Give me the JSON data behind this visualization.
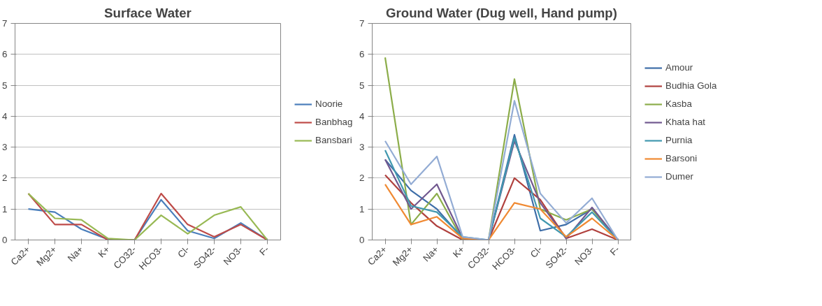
{
  "chart_data": [
    {
      "type": "line",
      "title": "Surface Water",
      "categories": [
        "Ca2+",
        "Mg2+",
        "Na+",
        "K+",
        "CO32-",
        "HCO3-",
        "Cl-",
        "SO42-",
        "NO3-",
        "F-"
      ],
      "ylim": [
        0,
        7
      ],
      "yticks": [
        0,
        1,
        2,
        3,
        4,
        5,
        6,
        7
      ],
      "grid": "y",
      "legend": "right",
      "marker": "none",
      "line_style": "solid",
      "series": [
        {
          "name": "Noorie",
          "color": "#4a7ebb",
          "values": [
            1.0,
            0.9,
            0.35,
            0.02,
            0,
            1.3,
            0.3,
            0.05,
            0.55,
            0
          ]
        },
        {
          "name": "Banbhag",
          "color": "#be4b48",
          "values": [
            1.5,
            0.5,
            0.5,
            0,
            0,
            1.5,
            0.5,
            0.1,
            0.5,
            0
          ]
        },
        {
          "name": "Bansbari",
          "color": "#98b954",
          "values": [
            1.5,
            0.7,
            0.65,
            0.05,
            0,
            0.8,
            0.2,
            0.8,
            1.07,
            0
          ]
        }
      ]
    },
    {
      "type": "line",
      "title": "Ground Water (Dug well, Hand pump)",
      "categories": [
        "Ca2+",
        "Mg2+",
        "Na+",
        "K+",
        "CO32-",
        "HCO3-",
        "Cl-",
        "SO42-",
        "NO3-",
        "F-"
      ],
      "ylim": [
        0,
        7
      ],
      "yticks": [
        0,
        1,
        2,
        3,
        4,
        5,
        6,
        7
      ],
      "grid": "y",
      "legend": "right",
      "marker": "none",
      "line_style": "solid",
      "series": [
        {
          "name": "Amour",
          "color": "#3e6ea8",
          "values": [
            2.6,
            1.6,
            1.0,
            0.05,
            0,
            3.4,
            0.3,
            0.5,
            1.0,
            0
          ]
        },
        {
          "name": "Budhia Gola",
          "color": "#b0413e",
          "values": [
            2.1,
            1.2,
            0.45,
            0,
            0,
            2.0,
            1.3,
            0.05,
            0.35,
            0
          ]
        },
        {
          "name": "Kasba",
          "color": "#8cad4a",
          "values": [
            5.9,
            0.5,
            1.5,
            0,
            0,
            5.2,
            1.0,
            0.65,
            1.0,
            0
          ]
        },
        {
          "name": "Khata hat",
          "color": "#71588f",
          "values": [
            2.6,
            1.0,
            1.8,
            0.05,
            0,
            3.2,
            1.2,
            0.05,
            1.05,
            0
          ]
        },
        {
          "name": "Purnia",
          "color": "#4198af",
          "values": [
            2.9,
            1.1,
            0.9,
            0.1,
            0,
            3.3,
            0.7,
            0.1,
            0.9,
            0
          ]
        },
        {
          "name": "Barsoni",
          "color": "#f08a33",
          "values": [
            1.8,
            0.5,
            0.75,
            0.05,
            0,
            1.2,
            1.0,
            0.1,
            0.7,
            0
          ]
        },
        {
          "name": "Dumer",
          "color": "#93acd4",
          "values": [
            3.2,
            1.8,
            2.7,
            0.1,
            0,
            4.5,
            1.5,
            0.55,
            1.35,
            0
          ]
        }
      ]
    }
  ]
}
